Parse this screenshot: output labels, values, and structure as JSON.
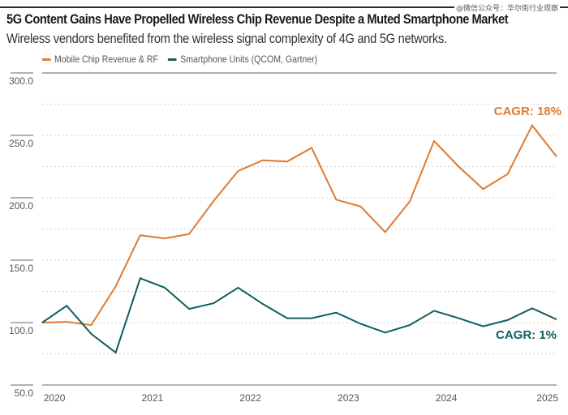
{
  "header": {
    "watermark": "@微信公众号：华尔街行业观察",
    "title": "5G Content Gains Have Propelled Wireless Chip Revenue Despite a Muted Smartphone Market",
    "subtitle": "Wireless vendors benefited from the wireless signal complexity of 4G and 5G networks."
  },
  "colors": {
    "orange": "#E07A2E",
    "teal": "#0F5E5E",
    "grid": "#d9d9d9",
    "axis": "#9a9a9a"
  },
  "chart_data": {
    "type": "line",
    "title": "5G Content Gains Have Propelled Wireless Chip Revenue Despite a Muted Smartphone Market",
    "subtitle": "Wireless vendors benefited from the wireless signal complexity of 4G and 5G networks.",
    "xlabel": "",
    "ylabel": "",
    "ylim": [
      50,
      300
    ],
    "yticks": [
      "300.0",
      "250.0",
      "200.0",
      "150.0",
      "100.0",
      "50.0"
    ],
    "ytick_values": [
      300,
      250,
      200,
      150,
      100,
      50
    ],
    "grid": "dotted horizontal every 25",
    "legend_position": "top-left",
    "x_tick_labels": [
      "2020",
      "2021",
      "2022",
      "2023",
      "2024",
      "2025"
    ],
    "x_tick_index": [
      0.5,
      4.5,
      8.5,
      12.5,
      16.5,
      21
    ],
    "x": [
      "2020Q1",
      "2020Q2",
      "2020Q3",
      "2020Q4",
      "2021Q1",
      "2021Q2",
      "2021Q3",
      "2021Q4",
      "2022Q1",
      "2022Q2",
      "2022Q3",
      "2022Q4",
      "2023Q1",
      "2023Q2",
      "2023Q3",
      "2023Q4",
      "2024Q1",
      "2024Q2",
      "2024Q3",
      "2024Q4",
      "2025Q1",
      "2025Q2"
    ],
    "series": [
      {
        "name": "Mobile Chip Revenue & RF",
        "color": "#E07A2E",
        "values": [
          100,
          100.6,
          98,
          129,
          170,
          167.5,
          171,
          197.5,
          221.5,
          230,
          229,
          240,
          198.5,
          193,
          172.5,
          197,
          245.5,
          225,
          207,
          219,
          258,
          233
        ],
        "annotation": "CAGR: 18%"
      },
      {
        "name": "Smartphone Units (QCOM, Gartner)",
        "color": "#0F5E5E",
        "values": [
          100,
          113.5,
          91,
          76,
          135.5,
          128,
          111,
          115.5,
          128,
          115,
          103.5,
          103.5,
          108,
          99,
          92,
          98,
          109.5,
          103.5,
          97,
          102,
          111.5,
          102.5
        ],
        "annotation": "CAGR: 1%"
      }
    ]
  }
}
